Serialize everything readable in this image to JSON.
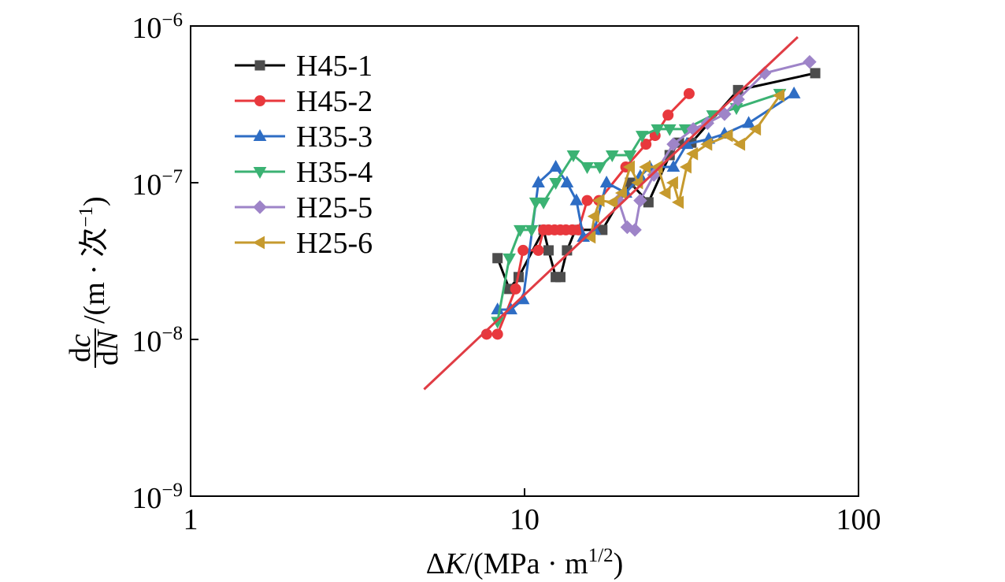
{
  "chart_data": {
    "type": "line",
    "xscale": "log",
    "yscale": "log",
    "xlim": [
      1,
      100
    ],
    "ylim": [
      1e-09,
      1e-06
    ],
    "xticks": [
      1,
      10,
      100
    ],
    "xtick_labels": [
      "1",
      "10",
      "100"
    ],
    "yticks": [
      1e-06,
      1e-07,
      1e-08,
      1e-09
    ],
    "ytick_labels": [
      {
        "base": "10",
        "exp": "−6"
      },
      {
        "base": "10",
        "exp": "−7"
      },
      {
        "base": "10",
        "exp": "−8"
      },
      {
        "base": "10",
        "exp": "−9"
      }
    ],
    "xlabel": {
      "symbol": [
        "Δ",
        "K"
      ],
      "unit": "/(MPa · m",
      "unit_exp": "1/2",
      "unit_close": ")"
    },
    "ylabel": {
      "numerator": [
        "d",
        "c"
      ],
      "denominator": [
        "d",
        "N"
      ],
      "unit": "/(m · 次",
      "unit_exp": "−1",
      "unit_close": ")"
    },
    "grid": false,
    "legend": "top-left",
    "series": [
      {
        "name": "H45-1",
        "color": "#000000",
        "marker": "square",
        "marker_color": "#4d4d4d",
        "x": [
          8.3,
          9.0,
          9.6,
          11.4,
          11.8,
          12.4,
          12.8,
          13.4,
          14.2,
          17.1,
          20.7,
          23.5,
          27.2,
          29.0,
          31.6,
          43.6,
          74.2
        ],
        "y": [
          3.3e-08,
          2.1e-08,
          2.5e-08,
          5e-08,
          3.7e-08,
          2.5e-08,
          2.5e-08,
          3.7e-08,
          5e-08,
          5e-08,
          1e-07,
          7.5e-08,
          1.5e-07,
          1.8e-07,
          1.8e-07,
          3.9e-07,
          5e-07
        ]
      },
      {
        "name": "H45-2",
        "color": "#e8383d",
        "marker": "circle",
        "marker_color": "#e8383d",
        "x": [
          7.7,
          8.3,
          9.4,
          9.9,
          11.0,
          11.4,
          11.8,
          12.3,
          12.8,
          13.3,
          13.9,
          14.5,
          15.4,
          16.7,
          20.1,
          23.1,
          24.6,
          26.9,
          31.1
        ],
        "y": [
          1.08e-08,
          1.08e-08,
          2.1e-08,
          3.7e-08,
          3.7e-08,
          5e-08,
          5e-08,
          5e-08,
          5e-08,
          5e-08,
          5e-08,
          5e-08,
          7.7e-08,
          7.7e-08,
          1.26e-07,
          1.76e-07,
          2e-07,
          2.7e-07,
          3.7e-07
        ]
      },
      {
        "name": "H35-3",
        "color": "#2e6dc4",
        "marker": "triangle-up",
        "marker_color": "#2e6dc4",
        "x": [
          8.3,
          9.1,
          9.9,
          11.0,
          12.4,
          13.4,
          14.3,
          15.0,
          16.2,
          17.6,
          20.1,
          22.2,
          23.7,
          27.9,
          30.6,
          35.6,
          39.7,
          46.9,
          64.1
        ],
        "y": [
          1.55e-08,
          1.55e-08,
          1.8e-08,
          1e-07,
          1.26e-07,
          1e-07,
          7.7e-08,
          4.5e-08,
          5e-08,
          1e-07,
          8.6e-08,
          1.1e-07,
          1.26e-07,
          1.26e-07,
          1.76e-07,
          1.9e-07,
          2.05e-07,
          2.4e-07,
          3.7e-07
        ]
      },
      {
        "name": "H35-4",
        "color": "#3bb273",
        "marker": "triangle-down",
        "marker_color": "#3bb273",
        "x": [
          8.3,
          9.0,
          9.7,
          10.5,
          10.8,
          11.4,
          12.4,
          14.0,
          15.4,
          16.8,
          18.3,
          20.7,
          22.5,
          25.0,
          27.2,
          30.3,
          36.6,
          43.1,
          58.1
        ],
        "y": [
          1.3e-08,
          3.3e-08,
          5e-08,
          5e-08,
          7.5e-08,
          7.5e-08,
          1e-07,
          1.5e-07,
          1.26e-07,
          1.26e-07,
          1.5e-07,
          1.5e-07,
          2e-07,
          2.2e-07,
          2.2e-07,
          2.2e-07,
          2.7e-07,
          3e-07,
          3.7e-07
        ]
      },
      {
        "name": "H25-5",
        "color": "#9e84c8",
        "marker": "diamond",
        "marker_color": "#9e84c8",
        "x": [
          19.1,
          20.3,
          21.4,
          22.2,
          24.4,
          27.9,
          32.0,
          35.3,
          39.7,
          43.6,
          52.3,
          71.4
        ],
        "y": [
          7.7e-08,
          5.2e-08,
          5e-08,
          7.7e-08,
          1.12e-07,
          1.76e-07,
          2.2e-07,
          2.4e-07,
          2.74e-07,
          3.4e-07,
          5e-07,
          5.9e-07
        ]
      },
      {
        "name": "H25-6",
        "color": "#c69a2e",
        "marker": "triangle-left",
        "marker_color": "#c69a2e",
        "x": [
          15.8,
          16.2,
          16.8,
          18.4,
          19.6,
          20.7,
          21.9,
          23.1,
          25.1,
          26.5,
          27.9,
          29.0,
          30.6,
          32.0,
          35.3,
          40.7,
          44.3,
          49.4,
          58.1
        ],
        "y": [
          4.5e-08,
          6.1e-08,
          7.7e-08,
          7.5e-08,
          8.6e-08,
          1.26e-07,
          1e-07,
          1.26e-07,
          1.26e-07,
          8.6e-08,
          1e-07,
          7.5e-08,
          1.26e-07,
          1.53e-07,
          1.76e-07,
          2e-07,
          1.76e-07,
          2.2e-07,
          3.6e-07
        ]
      }
    ],
    "fit_line": {
      "color": "#e03c44",
      "x": [
        5.0,
        65.8
      ],
      "y": [
        4.8e-09,
        8.5e-07
      ]
    }
  }
}
